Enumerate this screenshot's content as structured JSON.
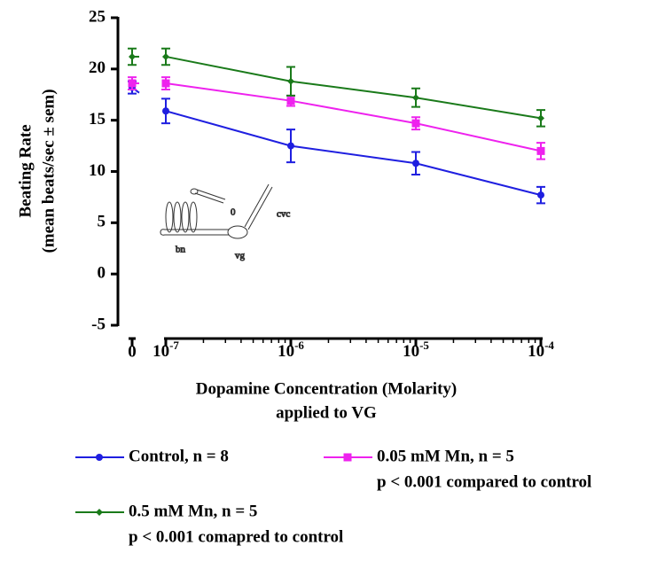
{
  "chart_data": {
    "type": "line",
    "ylabel": [
      "Beating Rate",
      "(mean beats/sec ± sem)"
    ],
    "xlabel": [
      "Dopamine Concentration (Molarity)",
      "applied to VG"
    ],
    "x": [
      0,
      1e-07,
      1e-06,
      1e-05,
      0.0001
    ],
    "xscale": "log",
    "xlim": [
      1e-07,
      0.0001
    ],
    "xticks": [
      0,
      {
        "value": 1e-07,
        "label": "10-7"
      },
      {
        "value": 1e-06,
        "label": "10-6"
      },
      {
        "value": 1e-05,
        "label": "10-5"
      },
      {
        "value": 0.0001,
        "label": "10-4"
      }
    ],
    "ylim": [
      -5,
      25
    ],
    "yticks": [
      -5,
      0,
      5,
      10,
      15,
      20,
      25
    ],
    "series": [
      {
        "name": "Control, n = 8",
        "color": "#1f1fe0",
        "marker": "circle",
        "values": [
          18.2,
          15.9,
          12.5,
          10.8,
          7.7
        ],
        "errors": [
          0.6,
          1.2,
          1.6,
          1.1,
          0.8
        ]
      },
      {
        "name": "0.05 mM Mn, n = 5",
        "note": "p < 0.001 compared to control",
        "color": "#ee22ee",
        "marker": "square",
        "values": [
          18.6,
          18.6,
          16.9,
          14.7,
          12.0
        ],
        "errors": [
          0.6,
          0.6,
          0.5,
          0.6,
          0.8
        ]
      },
      {
        "name": "0.5 mM Mn, n = 5",
        "note": "p < 0.001 comapred to control",
        "color": "#1a7a1a",
        "marker": "diamond",
        "values": [
          21.2,
          21.2,
          18.8,
          17.2,
          15.2
        ],
        "errors": [
          0.8,
          0.8,
          1.4,
          0.9,
          0.8
        ]
      }
    ],
    "inset_labels": [
      "0",
      "cvc",
      "bn",
      "vg"
    ]
  }
}
